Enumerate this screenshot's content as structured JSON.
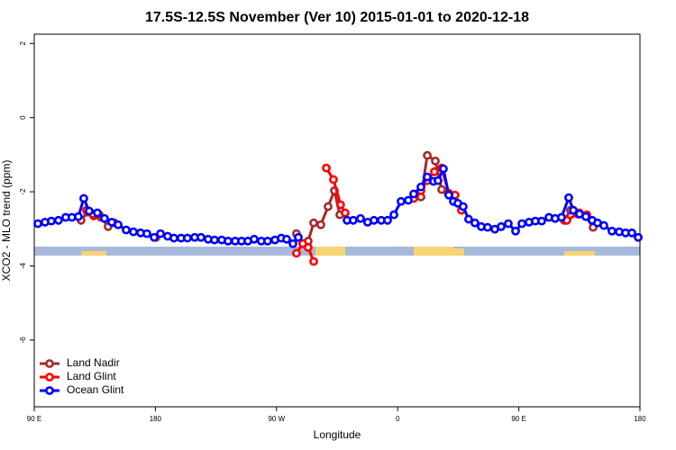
{
  "chart_data": {
    "type": "line",
    "title": "17.5S-12.5S November (Ver 10)   2015-01-01 to 2020-12-18",
    "xlabel": "Longitude",
    "ylabel": "XCO2 - MLO trend (ppm)",
    "xlim": [
      90,
      540
    ],
    "xticks": [
      {
        "value": 90,
        "label": "90 E"
      },
      {
        "value": 180,
        "label": "180"
      },
      {
        "value": 270,
        "label": "90 W"
      },
      {
        "value": 360,
        "label": "0"
      },
      {
        "value": 450,
        "label": "90 E"
      },
      {
        "value": 540,
        "label": "180"
      }
    ],
    "ylim": [
      -7.8,
      2.25
    ],
    "yticks": [
      2,
      0,
      -2,
      -4,
      -6
    ],
    "legend": "bottom-left",
    "series": [
      {
        "name": "Land Nadir",
        "color": "#a52a2a",
        "x": [
          124.8,
          129.5,
          134.2,
          139.6,
          144.9,
          149.6,
          null,
          284.8,
          289.5,
          293.5,
          297.6,
          302.9,
          308.3,
          313,
          317,
          null,
          377.3,
          382,
          388,
          392.7,
          397.4,
          null,
          483.7,
          488.4,
          493.8,
          499.8,
          505.2
        ],
        "values": [
          -2.77,
          -2.55,
          -2.65,
          -2.69,
          -2.94,
          -2.84,
          null,
          -3.13,
          -3.4,
          -3.33,
          -2.84,
          -2.89,
          -2.4,
          -1.97,
          -2.62,
          null,
          -2.14,
          -1.02,
          -1.17,
          -1.94,
          -2.04,
          null,
          -2.77,
          -2.5,
          -2.6,
          -2.67,
          -2.96
        ]
      },
      {
        "name": "Land Glint",
        "color": "#ff0000",
        "x": [
          128.8,
          133.5,
          138.2,
          null,
          180.4,
          null,
          284.8,
          289.5,
          293.5,
          297.6,
          null,
          307,
          312.3,
          317.6,
          321,
          null,
          371.9,
          377.3,
          382,
          387.3,
          392.7,
          398,
          402.7,
          407.4,
          null,
          485.7,
          495.1,
          500.5
        ],
        "values": [
          -2.5,
          -2.6,
          -2.62,
          null,
          -3.23,
          null,
          -3.66,
          -3.4,
          -3.5,
          -3.88,
          null,
          -1.36,
          -1.67,
          -2.35,
          -2.57,
          null,
          -2.18,
          -1.97,
          -1.7,
          -1.46,
          -1.36,
          -2.04,
          -2.09,
          -2.5,
          null,
          -2.77,
          -2.57,
          -2.62
        ]
      },
      {
        "name": "Ocean Glint",
        "color": "#0000ff",
        "x": [
          92.7,
          98,
          102.7,
          108,
          113.4,
          118,
          122.8,
          126.8,
          130.8,
          136.9,
          142.2,
          147.6,
          152.3,
          158.3,
          163.7,
          169,
          173.7,
          179.1,
          183.8,
          189.1,
          193.8,
          199.1,
          203.8,
          209.2,
          213.9,
          219.2,
          223.9,
          229.3,
          234,
          239.3,
          244,
          248.7,
          253.4,
          258.7,
          263.4,
          268.8,
          273.5,
          277.5,
          282.2,
          286.2,
          null,
          322.4,
          327,
          332.4,
          337.7,
          342.4,
          347.8,
          352.5,
          357.2,
          362.5,
          367.9,
          371.9,
          377.3,
          382,
          386.6,
          390,
          394,
          398,
          401.4,
          404.7,
          408.7,
          412.7,
          417.4,
          422.1,
          426.8,
          432.2,
          436.9,
          442.2,
          447.6,
          452.3,
          457.6,
          462.3,
          467,
          472.4,
          477,
          481.7,
          487.1,
          490.5,
          495.1,
          499.8,
          504.5,
          508.5,
          513.2,
          519.2,
          524.6,
          529.3,
          534,
          538.7
        ],
        "values": [
          -2.86,
          -2.82,
          -2.79,
          -2.77,
          -2.69,
          -2.69,
          -2.67,
          -2.18,
          -2.52,
          -2.57,
          -2.72,
          -2.82,
          -2.89,
          -3.03,
          -3.08,
          -3.11,
          -3.13,
          -3.23,
          -3.13,
          -3.2,
          -3.25,
          -3.25,
          -3.25,
          -3.23,
          -3.23,
          -3.28,
          -3.3,
          -3.3,
          -3.33,
          -3.33,
          -3.33,
          -3.33,
          -3.28,
          -3.33,
          -3.33,
          -3.3,
          -3.25,
          -3.28,
          -3.4,
          -3.23,
          null,
          -2.77,
          -2.77,
          -2.72,
          -2.82,
          -2.77,
          -2.77,
          -2.77,
          -2.62,
          -2.26,
          -2.23,
          -2.06,
          -1.87,
          -1.6,
          -1.72,
          -1.7,
          -1.38,
          -2.09,
          -2.26,
          -2.31,
          -2.4,
          -2.74,
          -2.84,
          -2.94,
          -2.96,
          -3.01,
          -2.94,
          -2.86,
          -3.06,
          -2.86,
          -2.82,
          -2.79,
          -2.79,
          -2.69,
          -2.72,
          -2.69,
          -2.16,
          -2.5,
          -2.6,
          -2.67,
          -2.77,
          -2.84,
          -2.91,
          -3.06,
          -3.08,
          -3.11,
          -3.11,
          -3.23
        ]
      }
    ]
  }
}
